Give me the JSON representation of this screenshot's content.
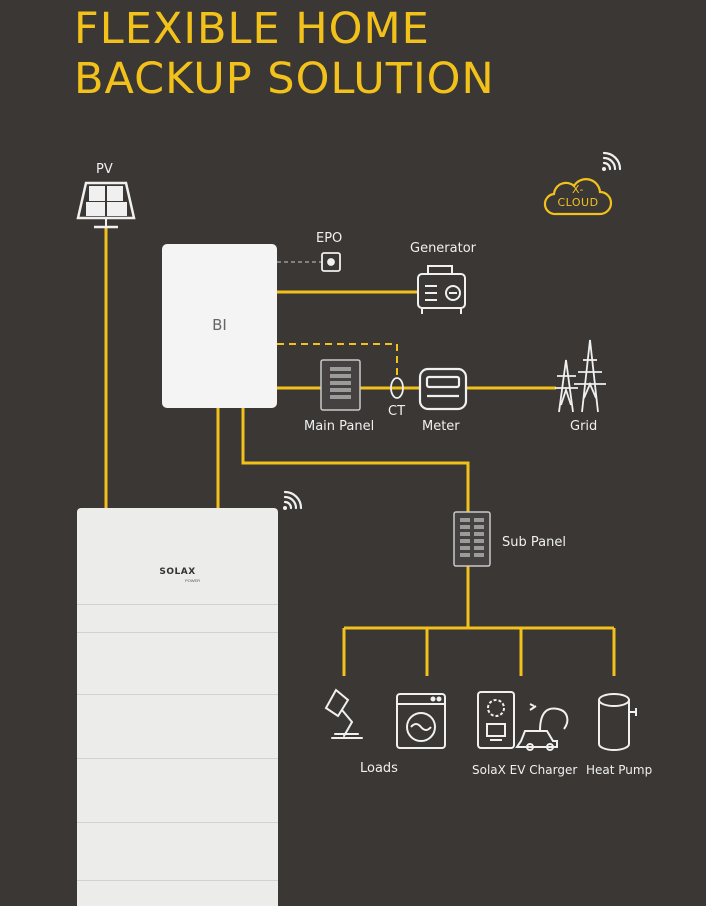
{
  "title": {
    "line1": "FLEXIBLE HOME",
    "line2": "BACKUP SOLUTION"
  },
  "labels": {
    "pv": "PV",
    "epo": "EPO",
    "generator": "Generator",
    "bi": "BI",
    "ct": "CT",
    "main_panel": "Main Panel",
    "meter": "Meter",
    "grid": "Grid",
    "sub_panel": "Sub Panel",
    "loads": "Loads",
    "ev_charger": "SolaX EV Charger",
    "heat_pump": "Heat Pump",
    "cloud_line1": "X-",
    "cloud_line2": "CLOUD",
    "brand": "SOLAX",
    "brand_sub": "POWER"
  },
  "colors": {
    "background": "#3a3735",
    "accent": "#f2c21b",
    "icon_stroke": "#f0f0f0",
    "device_fill": "#f4f4f4",
    "dashed_line": "#9a9a9a"
  },
  "icons": [
    "solar-panel-icon",
    "epo-button-icon",
    "generator-icon",
    "main-panel-icon",
    "ct-clamp-icon",
    "meter-icon",
    "transmission-tower-icon",
    "sub-panel-icon",
    "desk-lamp-icon",
    "washing-machine-icon",
    "ev-charger-icon",
    "ev-car-icon",
    "water-heater-icon",
    "cloud-icon",
    "wifi-icon"
  ]
}
